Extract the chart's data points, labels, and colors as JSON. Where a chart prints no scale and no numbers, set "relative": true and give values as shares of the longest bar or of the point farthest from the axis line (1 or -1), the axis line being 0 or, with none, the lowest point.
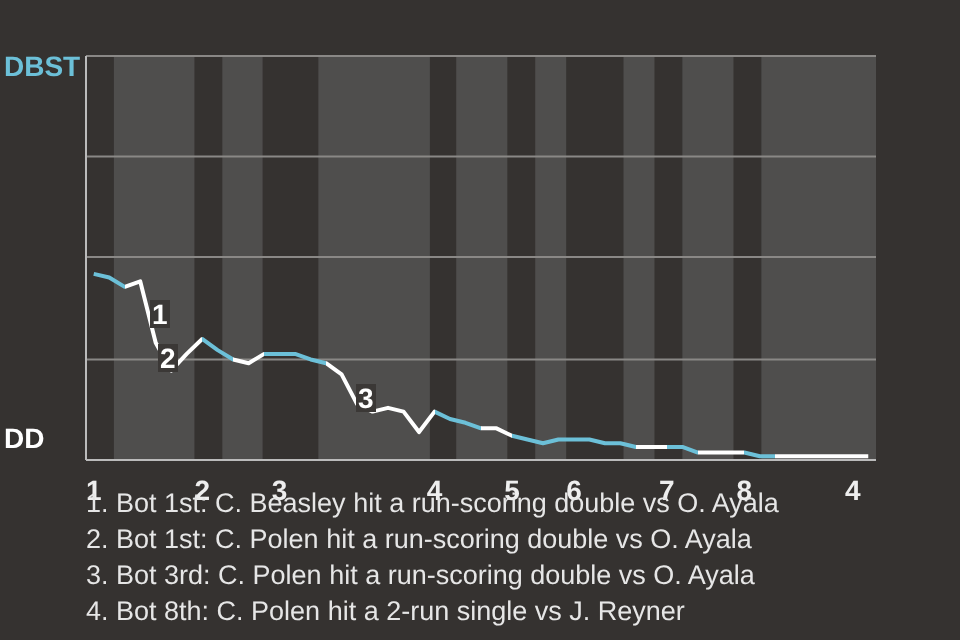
{
  "chart_data": {
    "type": "line",
    "relative": true,
    "categories": [
      "1",
      null,
      null,
      null,
      null,
      null,
      null,
      "2",
      null,
      null,
      null,
      null,
      "3",
      null,
      null,
      null,
      null,
      null,
      null,
      null,
      null,
      null,
      "4",
      null,
      null,
      null,
      null,
      "5",
      null,
      null,
      null,
      "6",
      null,
      null,
      null,
      null,
      null,
      "7",
      null,
      null,
      null,
      null,
      "8",
      null,
      null,
      null,
      null,
      null,
      null,
      "4",
      null
    ],
    "line_style": "solid",
    "ref_lines": [
      {
        "axis": "y",
        "value": 0.54,
        "color": "#8a8886"
      },
      {
        "axis": "y",
        "value": 1.09,
        "color": "#8a8886"
      },
      {
        "axis": "y",
        "value": 1.63,
        "color": "#8a8886"
      },
      {
        "axis": "y",
        "value": 2.17,
        "color": "#8a8886"
      }
    ],
    "series": [
      {
        "values": [
          1,
          0.98,
          0.93,
          0.96,
          0.63,
          0.48,
          0.57,
          0.65,
          0.59,
          0.54,
          0.52,
          0.57,
          0.57,
          0.57,
          0.54,
          0.52,
          0.46,
          0.3,
          0.26,
          0.28,
          0.26,
          0.15,
          0.26,
          0.22,
          0.2,
          0.17,
          0.17,
          0.13,
          0.11,
          0.09,
          0.11,
          0.11,
          0.11,
          0.09,
          0.09,
          0.07,
          0.07,
          0.07,
          0.07,
          0.04,
          0.04,
          0.04,
          0.04,
          0.02,
          0.02,
          0.02,
          0.02,
          0.02,
          0.02,
          0.02,
          0.02
        ],
        "colors": [
          "#6cc0d8",
          "#6cc0d8",
          "#ffffff",
          "#ffffff",
          "#ffffff",
          "#ffffff",
          "#ffffff",
          "#6cc0d8",
          "#6cc0d8",
          "#ffffff",
          "#ffffff",
          "#6cc0d8",
          "#6cc0d8",
          "#6cc0d8",
          "#6cc0d8",
          "#ffffff",
          "#ffffff",
          "#ffffff",
          "#ffffff",
          "#ffffff",
          "#ffffff",
          "#ffffff",
          "#6cc0d8",
          "#6cc0d8",
          "#6cc0d8",
          "#ffffff",
          "#ffffff",
          "#6cc0d8",
          "#6cc0d8",
          "#6cc0d8",
          "#6cc0d8",
          "#6cc0d8",
          "#6cc0d8",
          "#6cc0d8",
          "#6cc0d8",
          "#ffffff",
          "#ffffff",
          "#6cc0d8",
          "#6cc0d8",
          "#ffffff",
          "#ffffff",
          "#ffffff",
          "#6cc0d8",
          "#6cc0d8",
          "#ffffff",
          "#ffffff",
          "#ffffff",
          "#ffffff",
          "#ffffff",
          "#ffffff",
          "#ffffff"
        ]
      }
    ],
    "annotations": [
      "DBST",
      "DD",
      "1",
      "2",
      "3",
      "1. Bot 1st: C. Beasley hit a run-scoring double vs O. Ayala",
      "2. Bot 1st: C. Polen hit a run-scoring double vs O. Ayala",
      "3. Bot 3rd: C. Polen hit a run-scoring double vs O. Ayala",
      "4. Bot 8th: C. Polen hit a 2-run single vs J. Reyner"
    ]
  }
}
